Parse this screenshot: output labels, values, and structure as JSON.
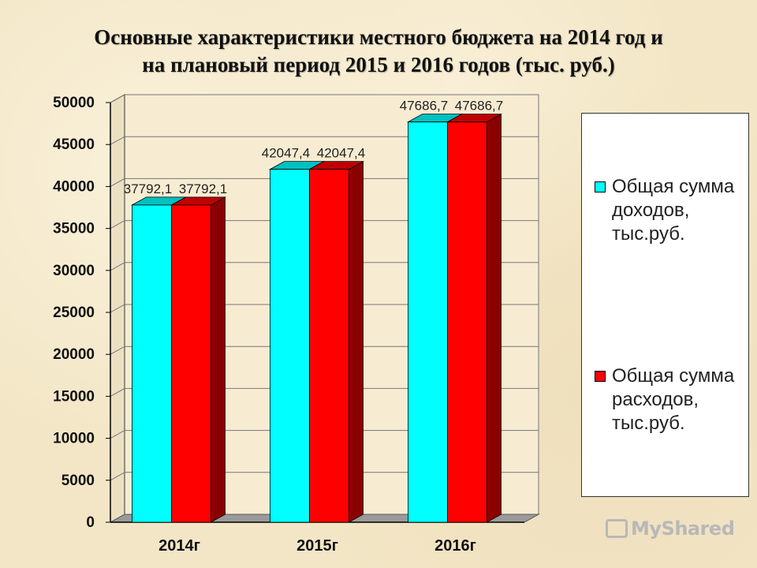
{
  "title_line1": "Основные характеристики местного бюджета на 2014 год и",
  "title_line2": "на плановый период 2015 и 2016 годов (тыс. руб.)",
  "chart_data": {
    "type": "bar",
    "categories": [
      "2014г",
      "2015г",
      "2016г"
    ],
    "series": [
      {
        "name": "Общая сумма доходов, тыс.руб.",
        "color": "#00ffff",
        "values": [
          37792.1,
          42047.4,
          47686.7
        ],
        "labels": [
          "37792,1",
          "42047,4",
          "47686,7"
        ]
      },
      {
        "name": "Общая сумма расходов, тыс.руб.",
        "color": "#ff0000",
        "values": [
          37792.1,
          42047.4,
          47686.7
        ],
        "labels": [
          "37792,1",
          "42047,4",
          "47686,7"
        ]
      }
    ],
    "yticks": [
      "0",
      "5000",
      "10000",
      "15000",
      "20000",
      "25000",
      "30000",
      "35000",
      "40000",
      "45000",
      "50000"
    ],
    "ylim": [
      0,
      50000
    ],
    "grid": true,
    "legend_position": "right"
  },
  "legend": {
    "income_line1": "Общая сумма",
    "income_line2": "доходов,",
    "income_line3": "тыс.руб.",
    "expense_line1": "Общая сумма",
    "expense_line2": "расходов,",
    "expense_line3": "тыс.руб."
  },
  "watermark": "MyShared"
}
